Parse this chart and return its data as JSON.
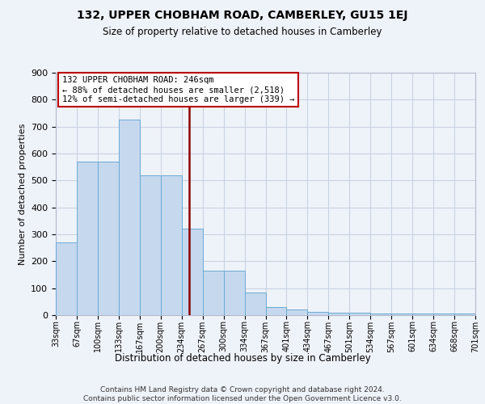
{
  "title": "132, UPPER CHOBHAM ROAD, CAMBERLEY, GU15 1EJ",
  "subtitle": "Size of property relative to detached houses in Camberley",
  "xlabel": "Distribution of detached houses by size in Camberley",
  "ylabel": "Number of detached properties",
  "bin_labels": [
    "33sqm",
    "67sqm",
    "100sqm",
    "133sqm",
    "167sqm",
    "200sqm",
    "234sqm",
    "267sqm",
    "300sqm",
    "334sqm",
    "367sqm",
    "401sqm",
    "434sqm",
    "467sqm",
    "501sqm",
    "534sqm",
    "567sqm",
    "601sqm",
    "634sqm",
    "668sqm",
    "701sqm"
  ],
  "bar_heights": [
    270,
    570,
    570,
    725,
    520,
    520,
    320,
    165,
    165,
    85,
    30,
    20,
    12,
    8,
    8,
    5,
    5,
    5,
    5,
    5
  ],
  "vline_x": 6.36,
  "annotation_line1": "132 UPPER CHOBHAM ROAD: 246sqm",
  "annotation_line2": "← 88% of detached houses are smaller (2,518)",
  "annotation_line3": "12% of semi-detached houses are larger (339) →",
  "bar_color": "#c5d8ee",
  "bar_edge_color": "#6aaad4",
  "vline_color": "#8b0000",
  "background_color": "#eef2f9",
  "grid_color": "#c5d0e0",
  "footnote_line1": "Contains HM Land Registry data © Crown copyright and database right 2024.",
  "footnote_line2": "Contains public sector information licensed under the Open Government Licence v3.0.",
  "ylim_max": 900,
  "yticks": [
    0,
    100,
    200,
    300,
    400,
    500,
    600,
    700,
    800,
    900
  ]
}
